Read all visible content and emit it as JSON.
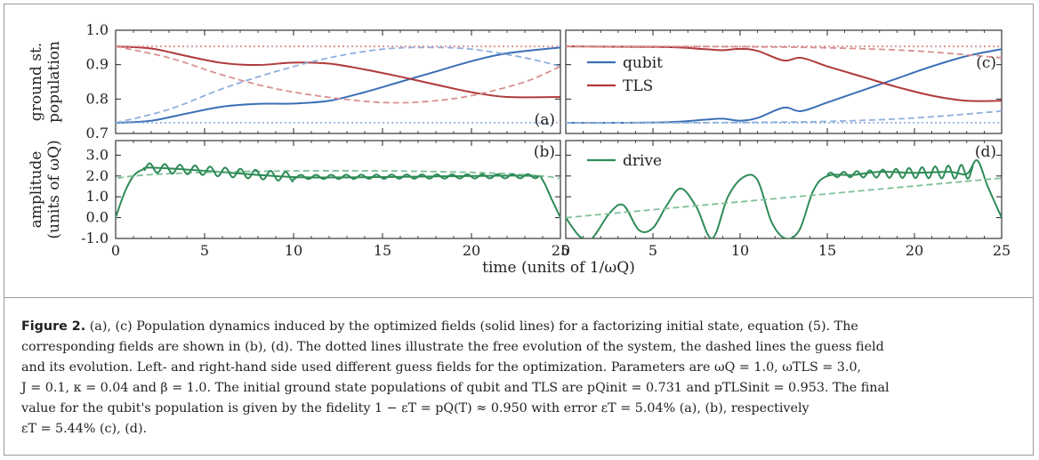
{
  "figure": {
    "ylabel_top": [
      "ground st.",
      "population"
    ],
    "ylabel_bottom": [
      "amplitude",
      "(units of ωQ)"
    ],
    "xlabel": "time (units of 1/ωQ)",
    "panel_labels": [
      "(a)",
      "(b)",
      "(c)",
      "(d)"
    ],
    "legend_c": [
      "qubit",
      "TLS"
    ],
    "legend_d": [
      "drive"
    ],
    "colors": {
      "qubit": "#3b6fb6",
      "tls": "#b03a3a",
      "drive": "#2e8b57",
      "qubit_light": "#8fb0dc",
      "tls_light": "#d99090",
      "drive_light": "#7fbf97"
    }
  },
  "chart_data": [
    {
      "type": "line",
      "panel": "(a)",
      "ylim": [
        0.7,
        1.0
      ],
      "xlim": [
        0,
        25
      ],
      "yticks": [
        "0.7",
        "0.8",
        "0.9",
        "1.0"
      ],
      "xticks": [
        "0",
        "5",
        "10",
        "15",
        "20",
        "25"
      ],
      "series": [
        {
          "name": "qubit",
          "style": "solid",
          "x": [
            0,
            2,
            4,
            6,
            8,
            10,
            12,
            14,
            16,
            18,
            20,
            22,
            25
          ],
          "y": [
            0.731,
            0.737,
            0.758,
            0.778,
            0.786,
            0.787,
            0.795,
            0.82,
            0.85,
            0.88,
            0.91,
            0.933,
            0.95
          ]
        },
        {
          "name": "TLS",
          "style": "solid",
          "x": [
            0,
            2,
            4,
            6,
            8,
            10,
            12,
            14,
            16,
            18,
            20,
            22,
            25
          ],
          "y": [
            0.953,
            0.947,
            0.925,
            0.905,
            0.899,
            0.906,
            0.903,
            0.886,
            0.865,
            0.842,
            0.82,
            0.806,
            0.806
          ]
        },
        {
          "style": "dashed",
          "x": [
            0,
            3,
            6,
            9,
            12,
            15,
            17.5,
            20,
            23,
            25
          ],
          "y": [
            0.731,
            0.77,
            0.83,
            0.88,
            0.92,
            0.945,
            0.95,
            0.945,
            0.92,
            0.895
          ]
        },
        {
          "style": "dashed",
          "x": [
            0,
            3,
            6,
            9,
            12,
            15,
            17.5,
            20,
            23,
            25
          ],
          "y": [
            0.953,
            0.92,
            0.87,
            0.83,
            0.805,
            0.79,
            0.793,
            0.81,
            0.85,
            0.895
          ]
        },
        {
          "style": "dotted",
          "x": [
            0,
            25
          ],
          "y": [
            0.731,
            0.731
          ]
        },
        {
          "style": "dotted",
          "x": [
            0,
            25
          ],
          "y": [
            0.953,
            0.953
          ]
        }
      ]
    },
    {
      "type": "line",
      "panel": "(b)",
      "ylim": [
        -1.0,
        3.7
      ],
      "xlim": [
        0,
        25
      ],
      "yticks": [
        "-1.0",
        "0.0",
        "1.0",
        "2.0",
        "3.0"
      ],
      "xticks": [
        "0",
        "5",
        "10",
        "15",
        "20",
        "25"
      ],
      "series": [
        {
          "name": "drive",
          "style": "solid",
          "x": [
            0,
            0.5,
            1,
            1.5,
            2,
            5,
            10,
            15,
            20,
            23.5,
            24,
            24.5,
            25
          ],
          "y": [
            0.0,
            1.2,
            2.0,
            2.3,
            2.4,
            2.25,
            1.95,
            1.95,
            2.0,
            2.0,
            1.8,
            0.9,
            0.0
          ]
        },
        {
          "style": "dashed",
          "x": [
            0,
            1,
            24,
            25
          ],
          "y": [
            0.0,
            2.0,
            2.0,
            0.0
          ]
        }
      ]
    },
    {
      "type": "line",
      "panel": "(c)",
      "ylim": [
        0.7,
        1.0
      ],
      "xlim": [
        0,
        25
      ],
      "xticks": [
        "0",
        "5",
        "10",
        "15",
        "20",
        "25"
      ],
      "series": [
        {
          "name": "qubit",
          "style": "solid",
          "x": [
            0,
            3,
            6,
            8,
            9,
            10,
            11,
            12.5,
            13.5,
            15,
            17,
            19,
            21,
            23,
            25
          ],
          "y": [
            0.731,
            0.731,
            0.733,
            0.74,
            0.743,
            0.737,
            0.745,
            0.775,
            0.765,
            0.79,
            0.825,
            0.86,
            0.895,
            0.925,
            0.945
          ]
        },
        {
          "name": "TLS",
          "style": "solid",
          "x": [
            0,
            3,
            6,
            8,
            9,
            10,
            11,
            12.5,
            13.5,
            15,
            17,
            19,
            21,
            23,
            25
          ],
          "y": [
            0.953,
            0.952,
            0.951,
            0.945,
            0.942,
            0.946,
            0.94,
            0.912,
            0.92,
            0.895,
            0.865,
            0.835,
            0.81,
            0.795,
            0.795
          ]
        },
        {
          "style": "dashed",
          "x": [
            0,
            5,
            10,
            15,
            20,
            25
          ],
          "y": [
            0.731,
            0.731,
            0.732,
            0.735,
            0.745,
            0.765
          ]
        },
        {
          "style": "dashed",
          "x": [
            0,
            5,
            10,
            15,
            20,
            25
          ],
          "y": [
            0.953,
            0.953,
            0.952,
            0.949,
            0.94,
            0.92
          ]
        },
        {
          "style": "dotted",
          "x": [
            0,
            25
          ],
          "y": [
            0.731,
            0.731
          ]
        },
        {
          "style": "dotted",
          "x": [
            0,
            25
          ],
          "y": [
            0.953,
            0.953
          ]
        }
      ]
    },
    {
      "type": "line",
      "panel": "(d)",
      "ylim": [
        -1.0,
        3.7
      ],
      "xlim": [
        0,
        25
      ],
      "xticks": [
        "0",
        "5",
        "10",
        "15",
        "20",
        "25"
      ],
      "series": [
        {
          "name": "drive",
          "style": "solid",
          "x": [
            0,
            0.8,
            1.5,
            2.5,
            3.3,
            4.2,
            5.0,
            5.8,
            6.6,
            7.5,
            8.4,
            9.3,
            10.2,
            11.0,
            11.8,
            12.6,
            13.4,
            14.2,
            15.0,
            16.5,
            18,
            20,
            22,
            23,
            23.6,
            24.2,
            25
          ],
          "y": [
            0.0,
            -0.9,
            -1.0,
            0.2,
            0.6,
            -0.6,
            -0.5,
            0.6,
            1.4,
            0.5,
            -1.0,
            1.0,
            1.95,
            1.8,
            -0.2,
            -1.0,
            -0.6,
            1.3,
            2.0,
            2.05,
            2.2,
            2.15,
            2.2,
            2.1,
            2.75,
            1.5,
            0.0
          ]
        },
        {
          "style": "dashed",
          "x": [
            0,
            25
          ],
          "y": [
            0.0,
            1.9
          ]
        }
      ]
    }
  ],
  "caption": {
    "label": "Figure 2.",
    "lines": [
      "(a), (c) Population dynamics induced by the optimized fields (solid lines) for a factorizing initial state, equation (5). The",
      "corresponding fields are shown in (b), (d). The dotted lines illustrate the free evolution of the system, the dashed lines the guess field",
      "and its evolution. Left- and right-hand side used different guess fields for the optimization. Parameters are ωQ = 1.0, ωTLS = 3.0,",
      "J = 0.1, κ = 0.04 and β = 1.0. The initial ground state populations of qubit and TLS are pQinit = 0.731 and pTLSinit = 0.953. The final",
      "value for the qubit's population is given by the fidelity 1 − εT = pQ(T) ≈ 0.950 with error εT = 5.04% (a), (b), respectively",
      "εT = 5.44% (c), (d)."
    ]
  }
}
